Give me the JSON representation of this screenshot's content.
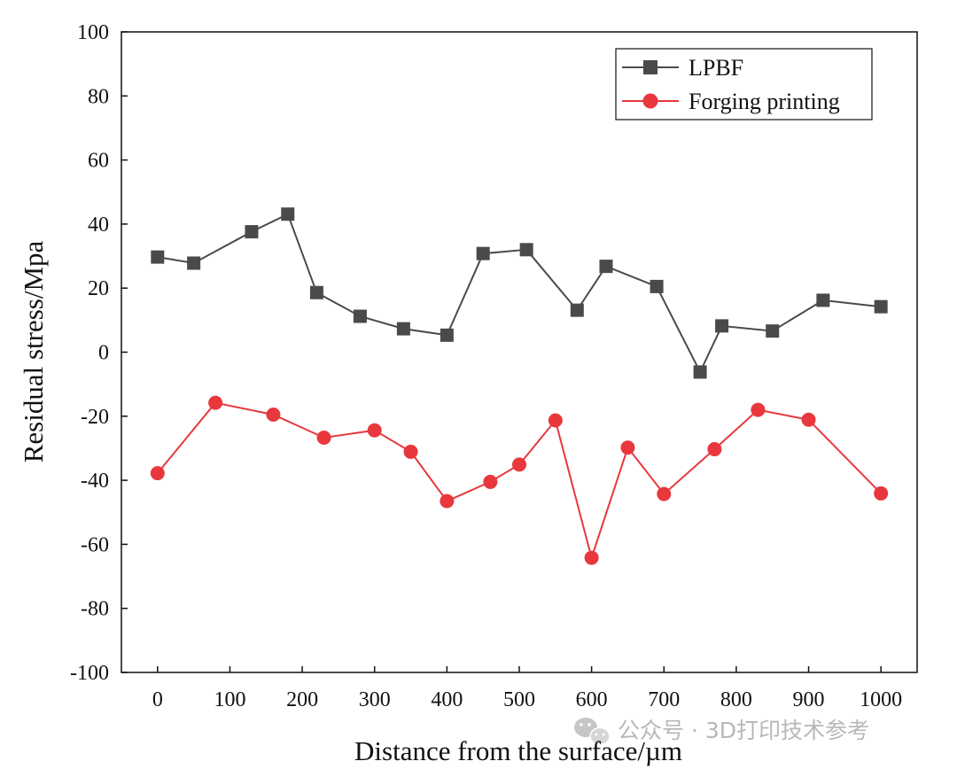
{
  "chart_data": {
    "type": "line",
    "title": "",
    "xlabel": "Distance from the surface/µm",
    "ylabel": "Residual stress/Mpa",
    "xlim": [
      -50,
      1050
    ],
    "ylim": [
      -100,
      100
    ],
    "x_ticks": [
      0,
      100,
      200,
      300,
      400,
      500,
      600,
      700,
      800,
      900,
      1000
    ],
    "y_ticks": [
      -100,
      -80,
      -60,
      -40,
      -20,
      0,
      20,
      40,
      60,
      80,
      100
    ],
    "grid": false,
    "legend_position": "top-right",
    "series": [
      {
        "name": "LPBF",
        "color": "#4a4a4a",
        "marker": "square",
        "x": [
          0,
          50,
          130,
          180,
          220,
          280,
          340,
          400,
          450,
          510,
          580,
          620,
          690,
          750,
          780,
          850,
          920,
          1000
        ],
        "values": [
          29.7,
          27.8,
          37.6,
          43.1,
          18.6,
          11.2,
          7.3,
          5.3,
          30.8,
          32.0,
          13.1,
          26.8,
          20.5,
          -6.2,
          8.2,
          6.6,
          16.2,
          14.2
        ]
      },
      {
        "name": "Forging printing",
        "color": "#e8383d",
        "marker": "circle",
        "x": [
          0,
          80,
          160,
          230,
          300,
          350,
          400,
          460,
          500,
          550,
          600,
          650,
          700,
          770,
          830,
          900,
          1000
        ],
        "values": [
          -37.8,
          -15.8,
          -19.5,
          -26.7,
          -24.4,
          -31.1,
          -46.5,
          -40.5,
          -35.1,
          -21.3,
          -64.2,
          -29.8,
          -44.3,
          -30.3,
          -18.0,
          -21.1,
          -44.1
        ]
      }
    ]
  },
  "watermark": {
    "text": "公众号 · 3D打印技术参考",
    "icon": "wechat-icon"
  }
}
